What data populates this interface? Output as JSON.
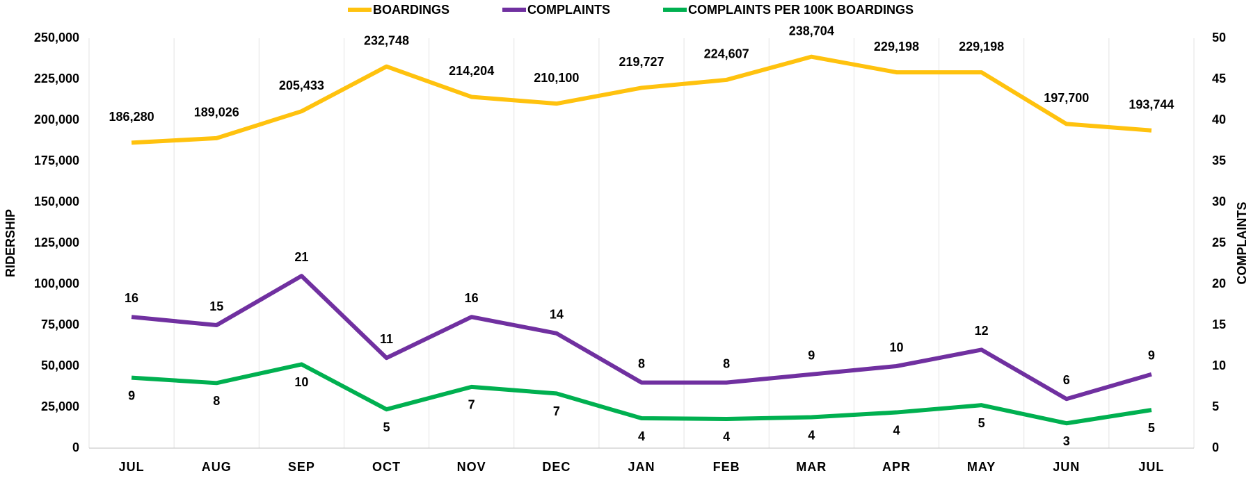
{
  "chart_data": {
    "type": "line",
    "categories": [
      "JUL",
      "AUG",
      "SEP",
      "OCT",
      "NOV",
      "DEC",
      "JAN",
      "FEB",
      "MAR",
      "APR",
      "MAY",
      "JUN",
      "JUL"
    ],
    "series": [
      {
        "name": "BOARDINGS",
        "color": "#FFC20E",
        "axis": "y",
        "values": [
          186280,
          189026,
          205433,
          232748,
          214204,
          210100,
          219727,
          224607,
          238704,
          229198,
          229198,
          197700,
          193744
        ],
        "value_labels": [
          "186,280",
          "189,026",
          "205,433",
          "232,748",
          "214,204",
          "210,100",
          "219,727",
          "224,607",
          "238,704",
          "229,198",
          "229,198",
          "197,700",
          "193,744"
        ]
      },
      {
        "name": "COMPLAINTS",
        "color": "#7030A0",
        "axis": "y2",
        "values": [
          16,
          15,
          21,
          11,
          16,
          14,
          8,
          8,
          9,
          10,
          12,
          6,
          9
        ]
      },
      {
        "name": "COMPLAINTS PER 100K BOARDINGS",
        "color": "#00B050",
        "axis": "y2",
        "values": [
          8.59,
          7.94,
          10.22,
          4.73,
          7.47,
          6.66,
          3.64,
          3.56,
          3.77,
          4.36,
          5.24,
          3.03,
          4.65
        ],
        "value_labels": [
          "9",
          "8",
          "10",
          "5",
          "7",
          "7",
          "4",
          "4",
          "4",
          "4",
          "5",
          "3",
          "5"
        ]
      }
    ],
    "ylabel": "RIDERSHIP",
    "y2label": "COMPLAINTS",
    "ylim": [
      0,
      250000
    ],
    "yticks": [
      0,
      {
        "value": 25000,
        "label": "25,000"
      },
      {
        "value": 50000,
        "label": "50,000"
      },
      {
        "value": 75000,
        "label": "75,000"
      },
      {
        "value": 100000,
        "label": "100,000"
      },
      {
        "value": 125000,
        "label": "125,000"
      },
      {
        "value": 150000,
        "label": "150,000"
      },
      {
        "value": 175000,
        "label": "175,000"
      },
      {
        "value": 200000,
        "label": "200,000"
      },
      {
        "value": 225000,
        "label": "225,000"
      },
      {
        "value": 250000,
        "label": "250,000"
      }
    ],
    "y2lim": [
      0,
      50
    ],
    "y2ticks": [
      0,
      5,
      10,
      15,
      20,
      25,
      30,
      35,
      40,
      45,
      50
    ],
    "legend": "top",
    "grid": "x"
  }
}
